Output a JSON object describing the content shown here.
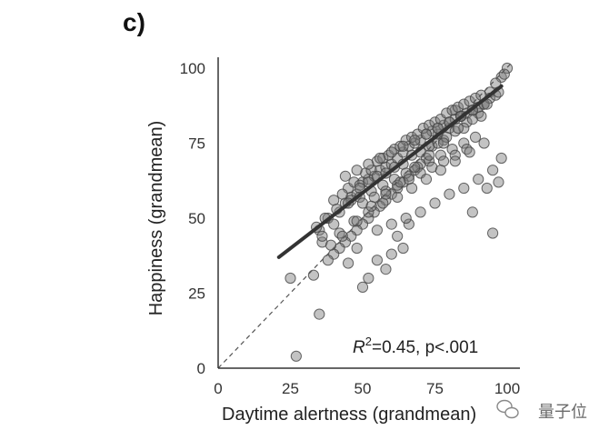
{
  "panel_label": "c)",
  "watermark": {
    "text": "量子位",
    "icon": "wechat-icon"
  },
  "colors": {
    "point_fill": "#7a7a7a",
    "point_stroke": "#444444",
    "regression_line": "#333333",
    "identity_line": "#555555",
    "axis": "#333333"
  },
  "chart_data": {
    "type": "scatter",
    "title": "",
    "xlabel": "Daytime alertness (grandmean)",
    "ylabel": "Happiness (grandmean)",
    "xlim": [
      0,
      100
    ],
    "ylim": [
      0,
      100
    ],
    "xticks": [
      0,
      25,
      50,
      75,
      100
    ],
    "yticks": [
      0,
      25,
      50,
      75,
      100
    ],
    "grid": false,
    "annotation": {
      "stat_prefix": "R",
      "stat_sup": "2",
      "stat_suffix": "=0.45, p<.001"
    },
    "regression_line": {
      "x": [
        21,
        98
      ],
      "y": [
        37,
        94
      ]
    },
    "identity_line": {
      "x": [
        0,
        100
      ],
      "y": [
        0,
        100
      ]
    },
    "points": {
      "x": [
        25,
        27,
        33,
        35,
        45,
        48,
        50,
        52,
        55,
        58,
        60,
        62,
        64,
        66,
        93,
        88,
        95,
        97,
        100,
        98,
        96,
        94,
        92,
        90,
        86,
        84,
        82,
        80,
        78,
        76,
        74,
        72,
        70,
        68,
        66,
        64,
        62,
        60,
        58,
        56,
        54,
        52,
        50,
        48,
        46,
        44,
        42,
        40,
        38,
        36,
        35,
        38,
        40,
        42,
        44,
        46,
        48,
        50,
        52,
        54,
        56,
        58,
        60,
        62,
        64,
        66,
        68,
        70,
        72,
        74,
        76,
        78,
        80,
        82,
        84,
        86,
        88,
        90,
        92,
        94,
        96,
        45,
        47,
        49,
        51,
        53,
        55,
        57,
        59,
        61,
        63,
        65,
        67,
        69,
        71,
        73,
        75,
        77,
        79,
        81,
        83,
        85,
        87,
        89,
        91,
        40,
        43,
        46,
        49,
        52,
        55,
        58,
        61,
        64,
        67,
        70,
        73,
        76,
        79,
        82,
        85,
        88,
        91,
        37,
        41,
        45,
        49,
        53,
        57,
        61,
        65,
        69,
        73,
        77,
        81,
        85,
        89,
        44,
        48,
        52,
        56,
        60,
        64,
        68,
        72,
        76,
        80,
        84,
        50,
        54,
        58,
        62,
        66,
        70,
        74,
        78,
        82,
        86,
        42,
        47,
        52,
        57,
        62,
        67,
        72,
        77,
        82,
        87,
        92,
        55,
        60,
        65,
        70,
        75,
        80,
        85,
        90,
        95,
        98,
        99,
        97,
        93,
        88,
        83,
        78,
        73,
        68,
        63,
        58,
        53,
        48,
        43,
        39,
        36,
        34
      ],
      "y": [
        30,
        4,
        31,
        18,
        35,
        40,
        27,
        30,
        36,
        33,
        38,
        44,
        40,
        48,
        60,
        52,
        45,
        62,
        100,
        97,
        95,
        92,
        88,
        85,
        82,
        84,
        86,
        80,
        76,
        78,
        74,
        70,
        68,
        66,
        64,
        62,
        60,
        58,
        56,
        54,
        52,
        50,
        48,
        46,
        44,
        42,
        40,
        38,
        36,
        42,
        46,
        50,
        48,
        52,
        55,
        57,
        58,
        62,
        63,
        64,
        66,
        67,
        68,
        70,
        72,
        74,
        75,
        76,
        78,
        79,
        80,
        81,
        82,
        83,
        84,
        85,
        86,
        87,
        88,
        90,
        91,
        60,
        62,
        61,
        65,
        66,
        69,
        70,
        71,
        73,
        74,
        76,
        77,
        78,
        80,
        81,
        82,
        83,
        85,
        86,
        87,
        88,
        89,
        90,
        91,
        56,
        58,
        56,
        60,
        62,
        64,
        65,
        67,
        68,
        71,
        72,
        74,
        75,
        77,
        79,
        80,
        83,
        84,
        50,
        53,
        55,
        57,
        59,
        61,
        63,
        65,
        67,
        69,
        71,
        73,
        75,
        77,
        64,
        66,
        68,
        70,
        72,
        74,
        76,
        78,
        80,
        82,
        84,
        55,
        57,
        59,
        61,
        63,
        65,
        67,
        69,
        71,
        73,
        45,
        49,
        52,
        55,
        57,
        60,
        63,
        66,
        69,
        72,
        75,
        46,
        48,
        50,
        52,
        55,
        58,
        60,
        63,
        66,
        70,
        98,
        92,
        88,
        86,
        80,
        75,
        71,
        67,
        62,
        58,
        54,
        49,
        44,
        41,
        44,
        47
      ]
    }
  }
}
